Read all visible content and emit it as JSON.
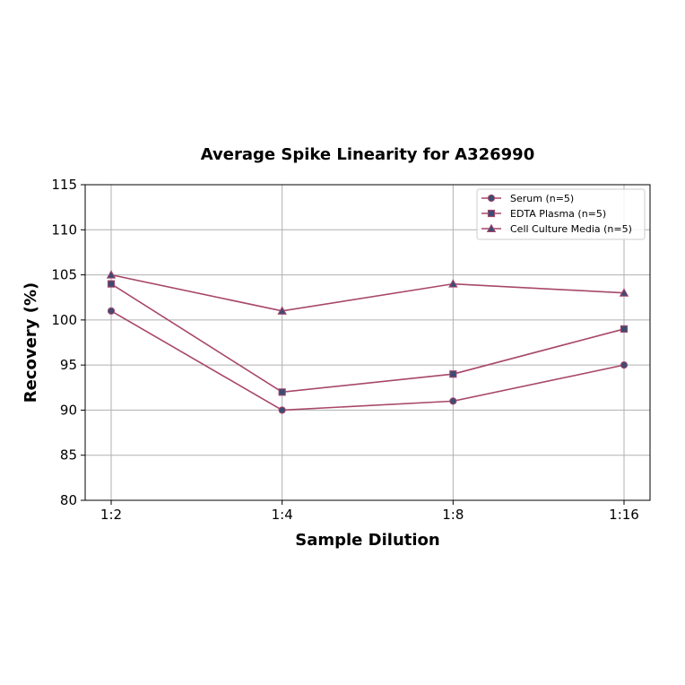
{
  "chart_data": {
    "type": "line",
    "title": "Average Spike Linearity for A326990",
    "xlabel": "Sample Dilution",
    "ylabel": "Recovery (%)",
    "categories": [
      "1:2",
      "1:4",
      "1:8",
      "1:16"
    ],
    "ylim": [
      80,
      115
    ],
    "yticks": [
      80,
      85,
      90,
      95,
      100,
      105,
      110,
      115
    ],
    "grid": true,
    "legend_position": "top-right",
    "line_color": "#a8476b",
    "marker_color": "#3c4c72",
    "series": [
      {
        "name": "Serum (n=5)",
        "marker": "circle",
        "values": [
          101,
          90,
          91,
          95
        ]
      },
      {
        "name": "EDTA Plasma (n=5)",
        "marker": "square",
        "values": [
          104,
          92,
          94,
          99
        ]
      },
      {
        "name": "Cell Culture Media (n=5)",
        "marker": "triangle",
        "values": [
          105,
          101,
          104,
          103
        ]
      }
    ]
  }
}
